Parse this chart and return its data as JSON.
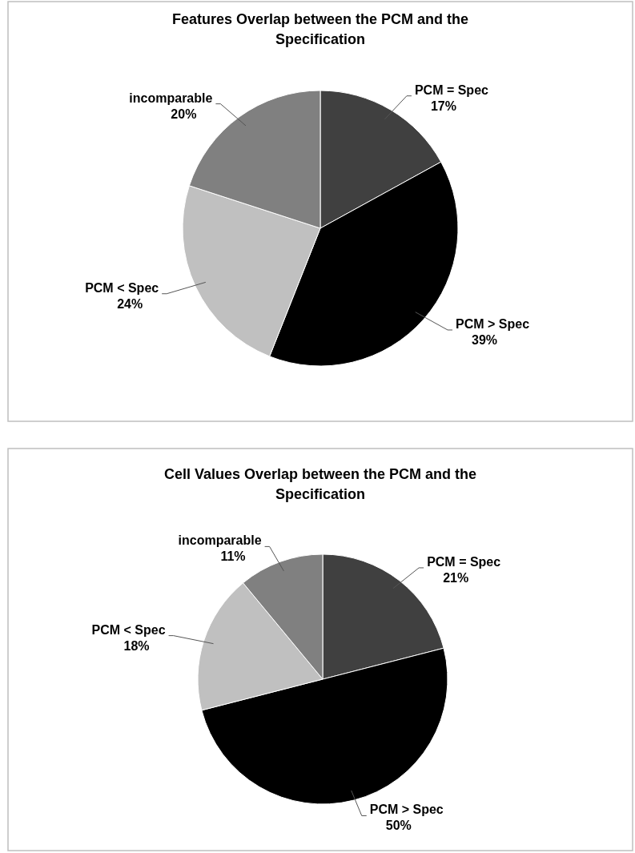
{
  "chart_data": [
    {
      "type": "pie",
      "title": "Features Overlap between the PCM and the Specification",
      "categories": [
        "PCM = Spec",
        "PCM > Spec",
        "PCM < Spec",
        "incomparable"
      ],
      "values": [
        17,
        39,
        24,
        20
      ],
      "colors": [
        "#404040",
        "#000000",
        "#c0c0c0",
        "#808080"
      ],
      "value_labels": [
        "17%",
        "39%",
        "24%",
        "20%"
      ]
    },
    {
      "type": "pie",
      "title": "Cell Values Overlap between the PCM and the Specification",
      "categories": [
        "PCM = Spec",
        "PCM > Spec",
        "PCM < Spec",
        "incomparable"
      ],
      "values": [
        21,
        50,
        18,
        11
      ],
      "colors": [
        "#404040",
        "#000000",
        "#c0c0c0",
        "#808080"
      ],
      "value_labels": [
        "21%",
        "50%",
        "18%",
        "11%"
      ]
    }
  ]
}
